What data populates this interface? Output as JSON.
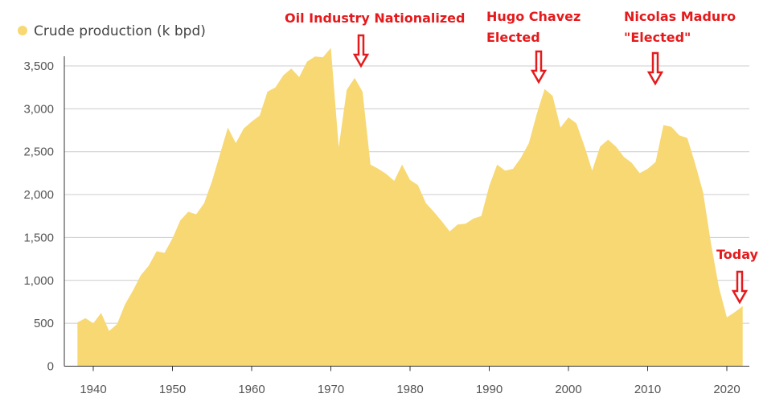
{
  "chart_data": {
    "type": "area",
    "title": "",
    "xlabel": "",
    "ylabel": "",
    "xlim": [
      1938,
      2022
    ],
    "ylim": [
      0,
      3700
    ],
    "x_ticks": [
      1940,
      1950,
      1960,
      1970,
      1980,
      1990,
      2000,
      2010,
      2020
    ],
    "y_ticks": [
      0,
      500,
      1000,
      1500,
      2000,
      2500,
      3000,
      3500
    ],
    "x_tick_labels": [
      "1940",
      "1950",
      "1960",
      "1970",
      "1980",
      "1990",
      "2000",
      "2010",
      "2020"
    ],
    "y_tick_labels": [
      "0",
      "500",
      "1,000",
      "1,500",
      "2,000",
      "2,500",
      "3,000",
      "3,500"
    ],
    "grid": true,
    "legend": {
      "placement": "top-left",
      "entries": [
        "Crude production (k bpd)"
      ]
    },
    "series": [
      {
        "name": "Crude production (k bpd)",
        "color": "#f7d873",
        "x": [
          1938,
          1939,
          1940,
          1941,
          1942,
          1943,
          1944,
          1945,
          1946,
          1947,
          1948,
          1949,
          1950,
          1951,
          1952,
          1953,
          1954,
          1955,
          1956,
          1957,
          1958,
          1959,
          1960,
          1961,
          1962,
          1963,
          1964,
          1965,
          1966,
          1967,
          1968,
          1969,
          1970,
          1971,
          1972,
          1973,
          1974,
          1975,
          1976,
          1977,
          1978,
          1979,
          1980,
          1981,
          1982,
          1983,
          1984,
          1985,
          1986,
          1987,
          1988,
          1989,
          1990,
          1991,
          1992,
          1993,
          1994,
          1995,
          1996,
          1997,
          1998,
          1999,
          2000,
          2001,
          2002,
          2003,
          2004,
          2005,
          2006,
          2007,
          2008,
          2009,
          2010,
          2011,
          2012,
          2013,
          2014,
          2015,
          2016,
          2017,
          2018,
          2019,
          2020,
          2021,
          2022
        ],
        "values": [
          510,
          560,
          500,
          620,
          410,
          490,
          720,
          880,
          1060,
          1170,
          1340,
          1320,
          1490,
          1700,
          1800,
          1770,
          1900,
          2160,
          2470,
          2780,
          2600,
          2770,
          2850,
          2920,
          3200,
          3250,
          3390,
          3470,
          3370,
          3550,
          3610,
          3600,
          3710,
          2550,
          3220,
          3360,
          3200,
          2350,
          2300,
          2240,
          2160,
          2350,
          2170,
          2110,
          1900,
          1800,
          1690,
          1570,
          1650,
          1660,
          1720,
          1750,
          2100,
          2350,
          2280,
          2300,
          2430,
          2600,
          2940,
          3230,
          3150,
          2780,
          2900,
          2830,
          2570,
          2280,
          2560,
          2640,
          2560,
          2440,
          2370,
          2250,
          2300,
          2380,
          2810,
          2790,
          2690,
          2660,
          2360,
          2030,
          1430,
          920,
          570,
          630,
          700
        ]
      }
    ],
    "annotations": [
      {
        "text": "Oil Industry Nationalized",
        "year": 1974,
        "value": 3300
      },
      {
        "text_lines": [
          "Hugo Chavez",
          "Elected"
        ],
        "year": 1997,
        "value": 3230
      },
      {
        "text_lines": [
          "Nicolas Maduro",
          "\"Elected\""
        ],
        "year": 2012,
        "value": 3150
      },
      {
        "text": "Today",
        "year": 2022,
        "value": 700
      }
    ],
    "annotation_color": "#e41a1c"
  }
}
